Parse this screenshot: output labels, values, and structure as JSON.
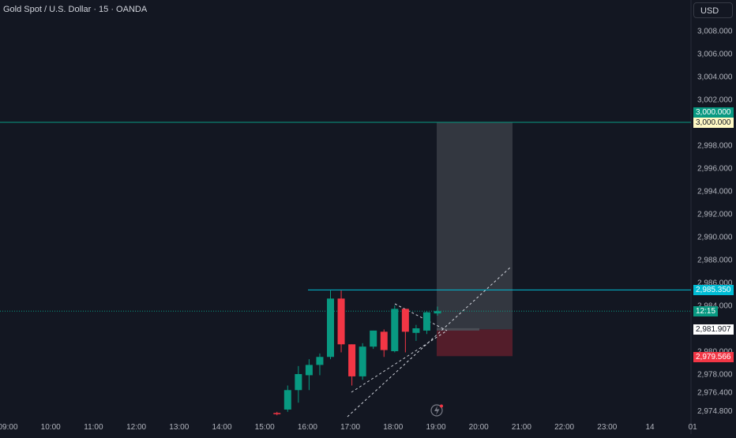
{
  "header": {
    "title": "Gold Spot / U.S. Dollar · 15 · OANDA",
    "currency": "USD"
  },
  "colors": {
    "background": "#131722",
    "up": "#089981",
    "down": "#f23645",
    "grid_text": "#b2b5be",
    "target_line": "#089981",
    "level_line": "#00bcd4",
    "profit_zone": "#3a3d45",
    "loss_zone": "#5b1e2b"
  },
  "price_axis": {
    "labels": [
      "3,008.000",
      "3,006.000",
      "3,004.000",
      "3,002.000",
      "2,998.000",
      "2,996.000",
      "2,994.000",
      "2,992.000",
      "2,990.000",
      "2,988.000",
      "2,986.000",
      "2,984.000",
      "2,980.000",
      "2,978.000",
      "2,976.400",
      "2,974.800"
    ]
  },
  "time_axis": {
    "labels": [
      "09:00",
      "10:00",
      "11:00",
      "12:00",
      "13:00",
      "14:00",
      "15:00",
      "16:00",
      "17:00",
      "18:00",
      "19:00",
      "20:00",
      "21:00",
      "22:00",
      "23:00",
      "14",
      "01"
    ]
  },
  "price_badges": {
    "target_green": "3,000.000",
    "target_yellow": "3,000.000",
    "level_cyan": "2,985.350",
    "countdown": "12:15",
    "entry": "2,981.907",
    "stop": "2,979.566"
  },
  "chart_data": {
    "type": "candlestick",
    "timeframe": "15",
    "candles": [
      {
        "t": "15:15",
        "o": 2974.6,
        "h": 2974.7,
        "l": 2974.4,
        "c": 2974.5
      },
      {
        "t": "15:30",
        "o": 2974.9,
        "h": 2977.0,
        "l": 2974.7,
        "c": 2976.6
      },
      {
        "t": "15:45",
        "o": 2976.6,
        "h": 2978.7,
        "l": 2975.5,
        "c": 2978.0
      },
      {
        "t": "16:00",
        "o": 2977.9,
        "h": 2979.3,
        "l": 2976.6,
        "c": 2978.8
      },
      {
        "t": "16:15",
        "o": 2978.8,
        "h": 2979.8,
        "l": 2977.9,
        "c": 2979.5
      },
      {
        "t": "16:30",
        "o": 2979.5,
        "h": 2985.3,
        "l": 2979.3,
        "c": 2984.6
      },
      {
        "t": "16:45",
        "o": 2984.6,
        "h": 2985.3,
        "l": 2979.9,
        "c": 2980.6
      },
      {
        "t": "17:00",
        "o": 2980.6,
        "h": 2980.6,
        "l": 2977.0,
        "c": 2977.8
      },
      {
        "t": "17:15",
        "o": 2977.8,
        "h": 2980.7,
        "l": 2977.5,
        "c": 2980.4
      },
      {
        "t": "17:30",
        "o": 2980.4,
        "h": 2981.8,
        "l": 2980.2,
        "c": 2981.8
      },
      {
        "t": "17:45",
        "o": 2981.7,
        "h": 2981.9,
        "l": 2979.5,
        "c": 2980.1
      },
      {
        "t": "18:00",
        "o": 2980.0,
        "h": 2984.0,
        "l": 2979.9,
        "c": 2983.7
      },
      {
        "t": "18:15",
        "o": 2983.7,
        "h": 2983.7,
        "l": 2979.9,
        "c": 2981.7
      },
      {
        "t": "18:30",
        "o": 2981.6,
        "h": 2982.3,
        "l": 2980.9,
        "c": 2982.0
      },
      {
        "t": "18:45",
        "o": 2981.8,
        "h": 2983.5,
        "l": 2981.5,
        "c": 2983.4
      },
      {
        "t": "19:00",
        "o": 2983.3,
        "h": 2983.9,
        "l": 2983.1,
        "c": 2983.5
      }
    ],
    "levels": [
      {
        "price": 3000.0,
        "style": "solid"
      },
      {
        "price": 2985.35,
        "style": "solid"
      },
      {
        "price": 2983.5,
        "style": "dotted"
      }
    ],
    "long_position": {
      "entry": 2981.907,
      "target": 3000.0,
      "stop": 2979.566
    }
  }
}
